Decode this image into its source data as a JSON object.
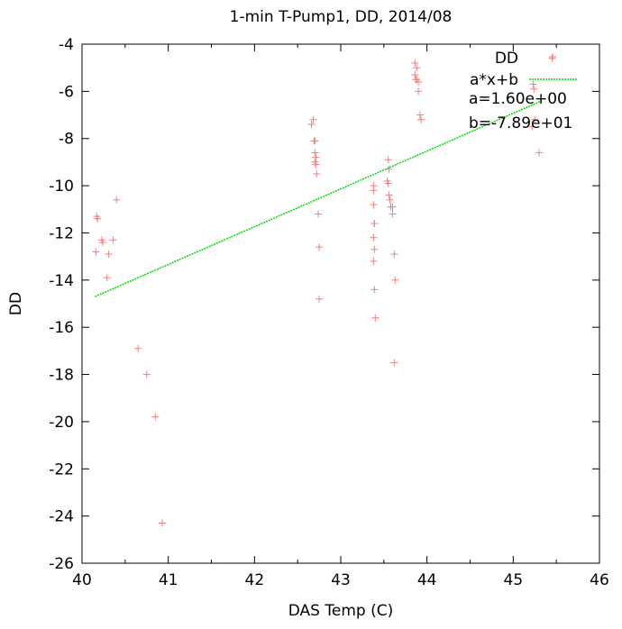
{
  "chart_data": {
    "type": "scatter",
    "title": "1-min T-Pump1, DD, 2014/08",
    "xlabel": "DAS Temp (C)",
    "ylabel": "DD",
    "xlim": [
      40,
      46
    ],
    "ylim": [
      -26,
      -4
    ],
    "xticks": [
      "40",
      "41",
      "42",
      "43",
      "44",
      "45",
      "46"
    ],
    "yticks": [
      "-4",
      "-6",
      "-8",
      "-10",
      "-12",
      "-14",
      "-16",
      "-18",
      "-20",
      "-22",
      "-24",
      "-26"
    ],
    "grid": false,
    "legend_position": "top-right",
    "colors": {
      "points": "#f08080",
      "fit": "#00dd00",
      "axes": "#000000"
    },
    "series": [
      {
        "name": "DD",
        "style": "points",
        "points": [
          [
            40.17,
            -11.3
          ],
          [
            40.18,
            -11.4
          ],
          [
            40.16,
            -12.8
          ],
          [
            40.23,
            -12.3
          ],
          [
            40.24,
            -12.4
          ],
          [
            40.36,
            -12.3
          ],
          [
            40.31,
            -12.9
          ],
          [
            40.29,
            -13.9
          ],
          [
            40.4,
            -10.6
          ],
          [
            40.65,
            -16.9
          ],
          [
            40.75,
            -18.0
          ],
          [
            40.85,
            -19.8
          ],
          [
            40.93,
            -24.3
          ],
          [
            42.68,
            -7.2
          ],
          [
            42.66,
            -7.4
          ],
          [
            42.7,
            -8.1
          ],
          [
            42.69,
            -8.1
          ],
          [
            42.7,
            -8.6
          ],
          [
            42.71,
            -8.8
          ],
          [
            42.7,
            -9.0
          ],
          [
            42.71,
            -9.1
          ],
          [
            42.72,
            -9.5
          ],
          [
            42.74,
            -11.2
          ],
          [
            42.75,
            -12.6
          ],
          [
            42.75,
            -14.8
          ],
          [
            43.38,
            -10.0
          ],
          [
            43.38,
            -10.2
          ],
          [
            43.38,
            -10.8
          ],
          [
            43.39,
            -11.6
          ],
          [
            43.39,
            -11.6
          ],
          [
            43.38,
            -12.2
          ],
          [
            43.39,
            -12.7
          ],
          [
            43.38,
            -13.2
          ],
          [
            43.39,
            -14.4
          ],
          [
            43.4,
            -15.6
          ],
          [
            43.55,
            -8.9
          ],
          [
            43.56,
            -9.3
          ],
          [
            43.54,
            -9.8
          ],
          [
            43.55,
            -9.9
          ],
          [
            43.56,
            -10.4
          ],
          [
            43.57,
            -10.6
          ],
          [
            43.58,
            -10.9
          ],
          [
            43.6,
            -10.9
          ],
          [
            43.6,
            -11.2
          ],
          [
            43.62,
            -12.9
          ],
          [
            43.63,
            -14.0
          ],
          [
            43.62,
            -17.5
          ],
          [
            43.86,
            -4.8
          ],
          [
            43.88,
            -5.0
          ],
          [
            43.86,
            -5.3
          ],
          [
            43.88,
            -5.5
          ],
          [
            43.87,
            -5.5
          ],
          [
            43.9,
            -5.6
          ],
          [
            43.9,
            -6.0
          ],
          [
            43.92,
            -7.0
          ],
          [
            43.93,
            -7.2
          ],
          [
            45.23,
            -5.7
          ],
          [
            45.24,
            -5.9
          ],
          [
            45.25,
            -7.2
          ],
          [
            45.22,
            -7.5
          ],
          [
            45.3,
            -8.6
          ],
          [
            45.45,
            -4.6
          ]
        ]
      },
      {
        "name": "a*x+b",
        "style": "line",
        "x": [
          40.15,
          45.33
        ],
        "y": [
          -14.7,
          -6.4
        ]
      }
    ],
    "annotations": [
      "a=1.60e+00",
      "b=-7.89e+01"
    ]
  }
}
